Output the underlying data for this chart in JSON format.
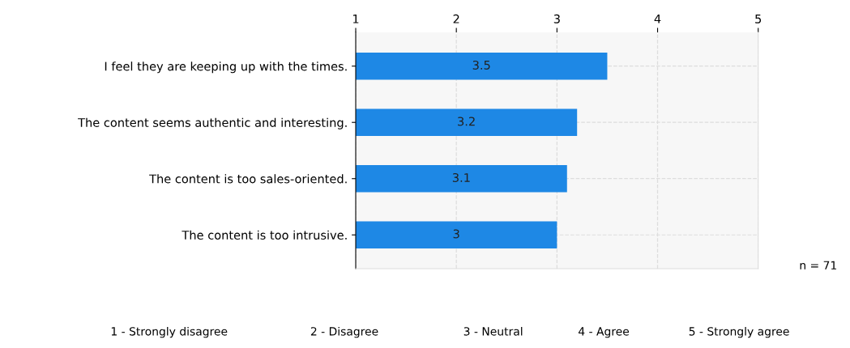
{
  "chart_data": {
    "type": "bar",
    "orientation": "horizontal",
    "categories": [
      "I feel they are keeping up with the times.",
      "The content seems authentic and interesting.",
      "The content is too sales-oriented.",
      "The content is too intrusive."
    ],
    "values": [
      3.5,
      3.2,
      3.1,
      3
    ],
    "color": "#1e88e5",
    "xlim": [
      1,
      5
    ],
    "xticks": [
      1,
      2,
      3,
      4,
      5
    ],
    "grid": true,
    "data_labels": true,
    "annotations": [
      "n = 71",
      "1 - Strongly disagree",
      "2 - Disagree",
      "3 - Neutral",
      "4 - Agree",
      "5 - Strongly agree"
    ]
  }
}
